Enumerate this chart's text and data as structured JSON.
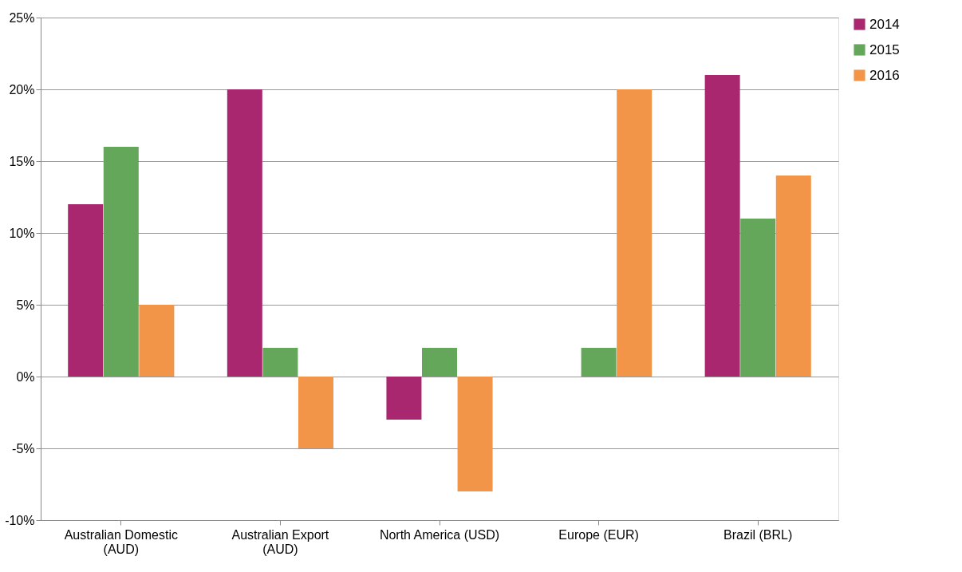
{
  "chart_data": {
    "type": "bar",
    "categories": [
      "Australian Domestic (AUD)",
      "Australian Export (AUD)",
      "North America (USD)",
      "Europe (EUR)",
      "Brazil (BRL)"
    ],
    "series": [
      {
        "name": "2014",
        "color": "#a8276e",
        "values": [
          12,
          20,
          -3,
          null,
          21
        ]
      },
      {
        "name": "2015",
        "color": "#64a65a",
        "values": [
          16,
          2,
          2,
          2,
          11
        ]
      },
      {
        "name": "2016",
        "color": "#f29548",
        "values": [
          5,
          -5,
          -8,
          20,
          14
        ]
      }
    ],
    "ylim": [
      -10,
      25
    ],
    "yticks": [
      {
        "value": -10,
        "label": "-10%"
      },
      {
        "value": -5,
        "label": "-5%"
      },
      {
        "value": 0,
        "label": "0%"
      },
      {
        "value": 5,
        "label": "5%"
      },
      {
        "value": 10,
        "label": "10%"
      },
      {
        "value": 15,
        "label": "15%"
      },
      {
        "value": 20,
        "label": "20%"
      },
      {
        "value": 25,
        "label": "25%"
      }
    ],
    "grid": "y",
    "legend": "right"
  }
}
